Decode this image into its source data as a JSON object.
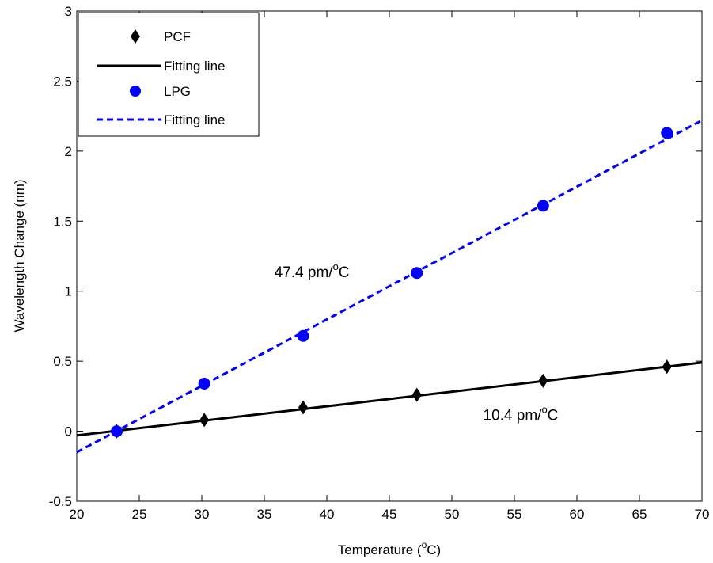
{
  "chart_data": {
    "type": "scatter",
    "xlabel": "Temperature (",
    "xlabel_sup": "o",
    "xlabel_end": "C)",
    "ylabel": "Wavelength Change (nm)",
    "xlim": [
      20,
      70
    ],
    "ylim": [
      -0.5,
      3
    ],
    "xticks": [
      20,
      25,
      30,
      35,
      40,
      45,
      50,
      55,
      60,
      65,
      70
    ],
    "yticks": [
      -0.5,
      0,
      0.5,
      1,
      1.5,
      2,
      2.5,
      3
    ],
    "ytick_labels": [
      "-0.5",
      "0",
      "0.5",
      "1",
      "1.5",
      "2",
      "2.5",
      "3"
    ],
    "grid": false,
    "legend_position": "top-left",
    "series": [
      {
        "name": "PCF",
        "marker": "diamond",
        "color": "#000000",
        "x": [
          23.2,
          30.2,
          38.1,
          47.2,
          57.3,
          67.2
        ],
        "y": [
          0,
          0.08,
          0.17,
          0.26,
          0.36,
          0.46
        ]
      },
      {
        "name": "Fitting line",
        "kind": "line",
        "style": "solid",
        "color": "#000000",
        "x": [
          20,
          70
        ],
        "y": [
          -0.03,
          0.49
        ]
      },
      {
        "name": "LPG",
        "marker": "circle",
        "color": "#0000ff",
        "x": [
          23.2,
          30.2,
          38.1,
          47.2,
          57.3,
          67.2
        ],
        "y": [
          0,
          0.34,
          0.68,
          1.13,
          1.61,
          2.13
        ]
      },
      {
        "name": "Fitting line",
        "kind": "line",
        "style": "dashed",
        "color": "#0000ff",
        "x": [
          20,
          70
        ],
        "y": [
          -0.15,
          2.22
        ]
      }
    ],
    "annotations": [
      {
        "text": "47.4 pm/",
        "sup": "o",
        "text_end": "C",
        "x": 35.8,
        "y": 1.1
      },
      {
        "text": "10.4 pm/",
        "sup": "o",
        "text_end": "C",
        "x": 52.5,
        "y": 0.08
      }
    ]
  }
}
